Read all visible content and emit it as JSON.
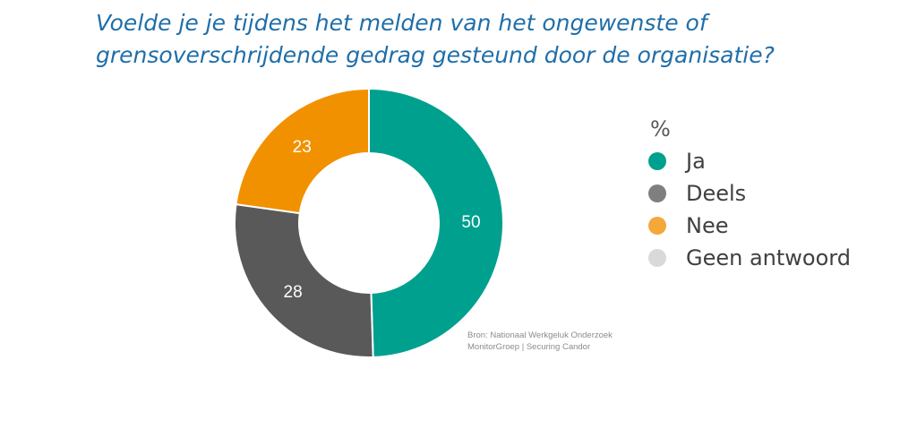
{
  "chart_data": {
    "type": "pie",
    "variant": "donut",
    "title_lines": [
      "Voelde je je tijdens het melden van het ongewenste of",
      "grensoverschrijdende gedrag gesteund door de organisatie?"
    ],
    "legend_title": "%",
    "legend_placement": "right",
    "slices": [
      {
        "label": "Ja",
        "value": 50,
        "color": "#00A08F",
        "legend_color": "#00A08F"
      },
      {
        "label": "Deels",
        "value": 28,
        "color": "#595959",
        "legend_color": "#7F7F7F"
      },
      {
        "label": "Nee",
        "value": 23,
        "color": "#F29100",
        "legend_color": "#F4A83A"
      },
      {
        "label": "Geen antwoord",
        "value": 0,
        "color": "#D9D9D9",
        "legend_color": "#D9D9D9"
      }
    ],
    "source_lines": [
      "Bron: Nationaal Werkgeluk Onderzoek",
      "MonitorGroep | Securing Candor"
    ]
  }
}
